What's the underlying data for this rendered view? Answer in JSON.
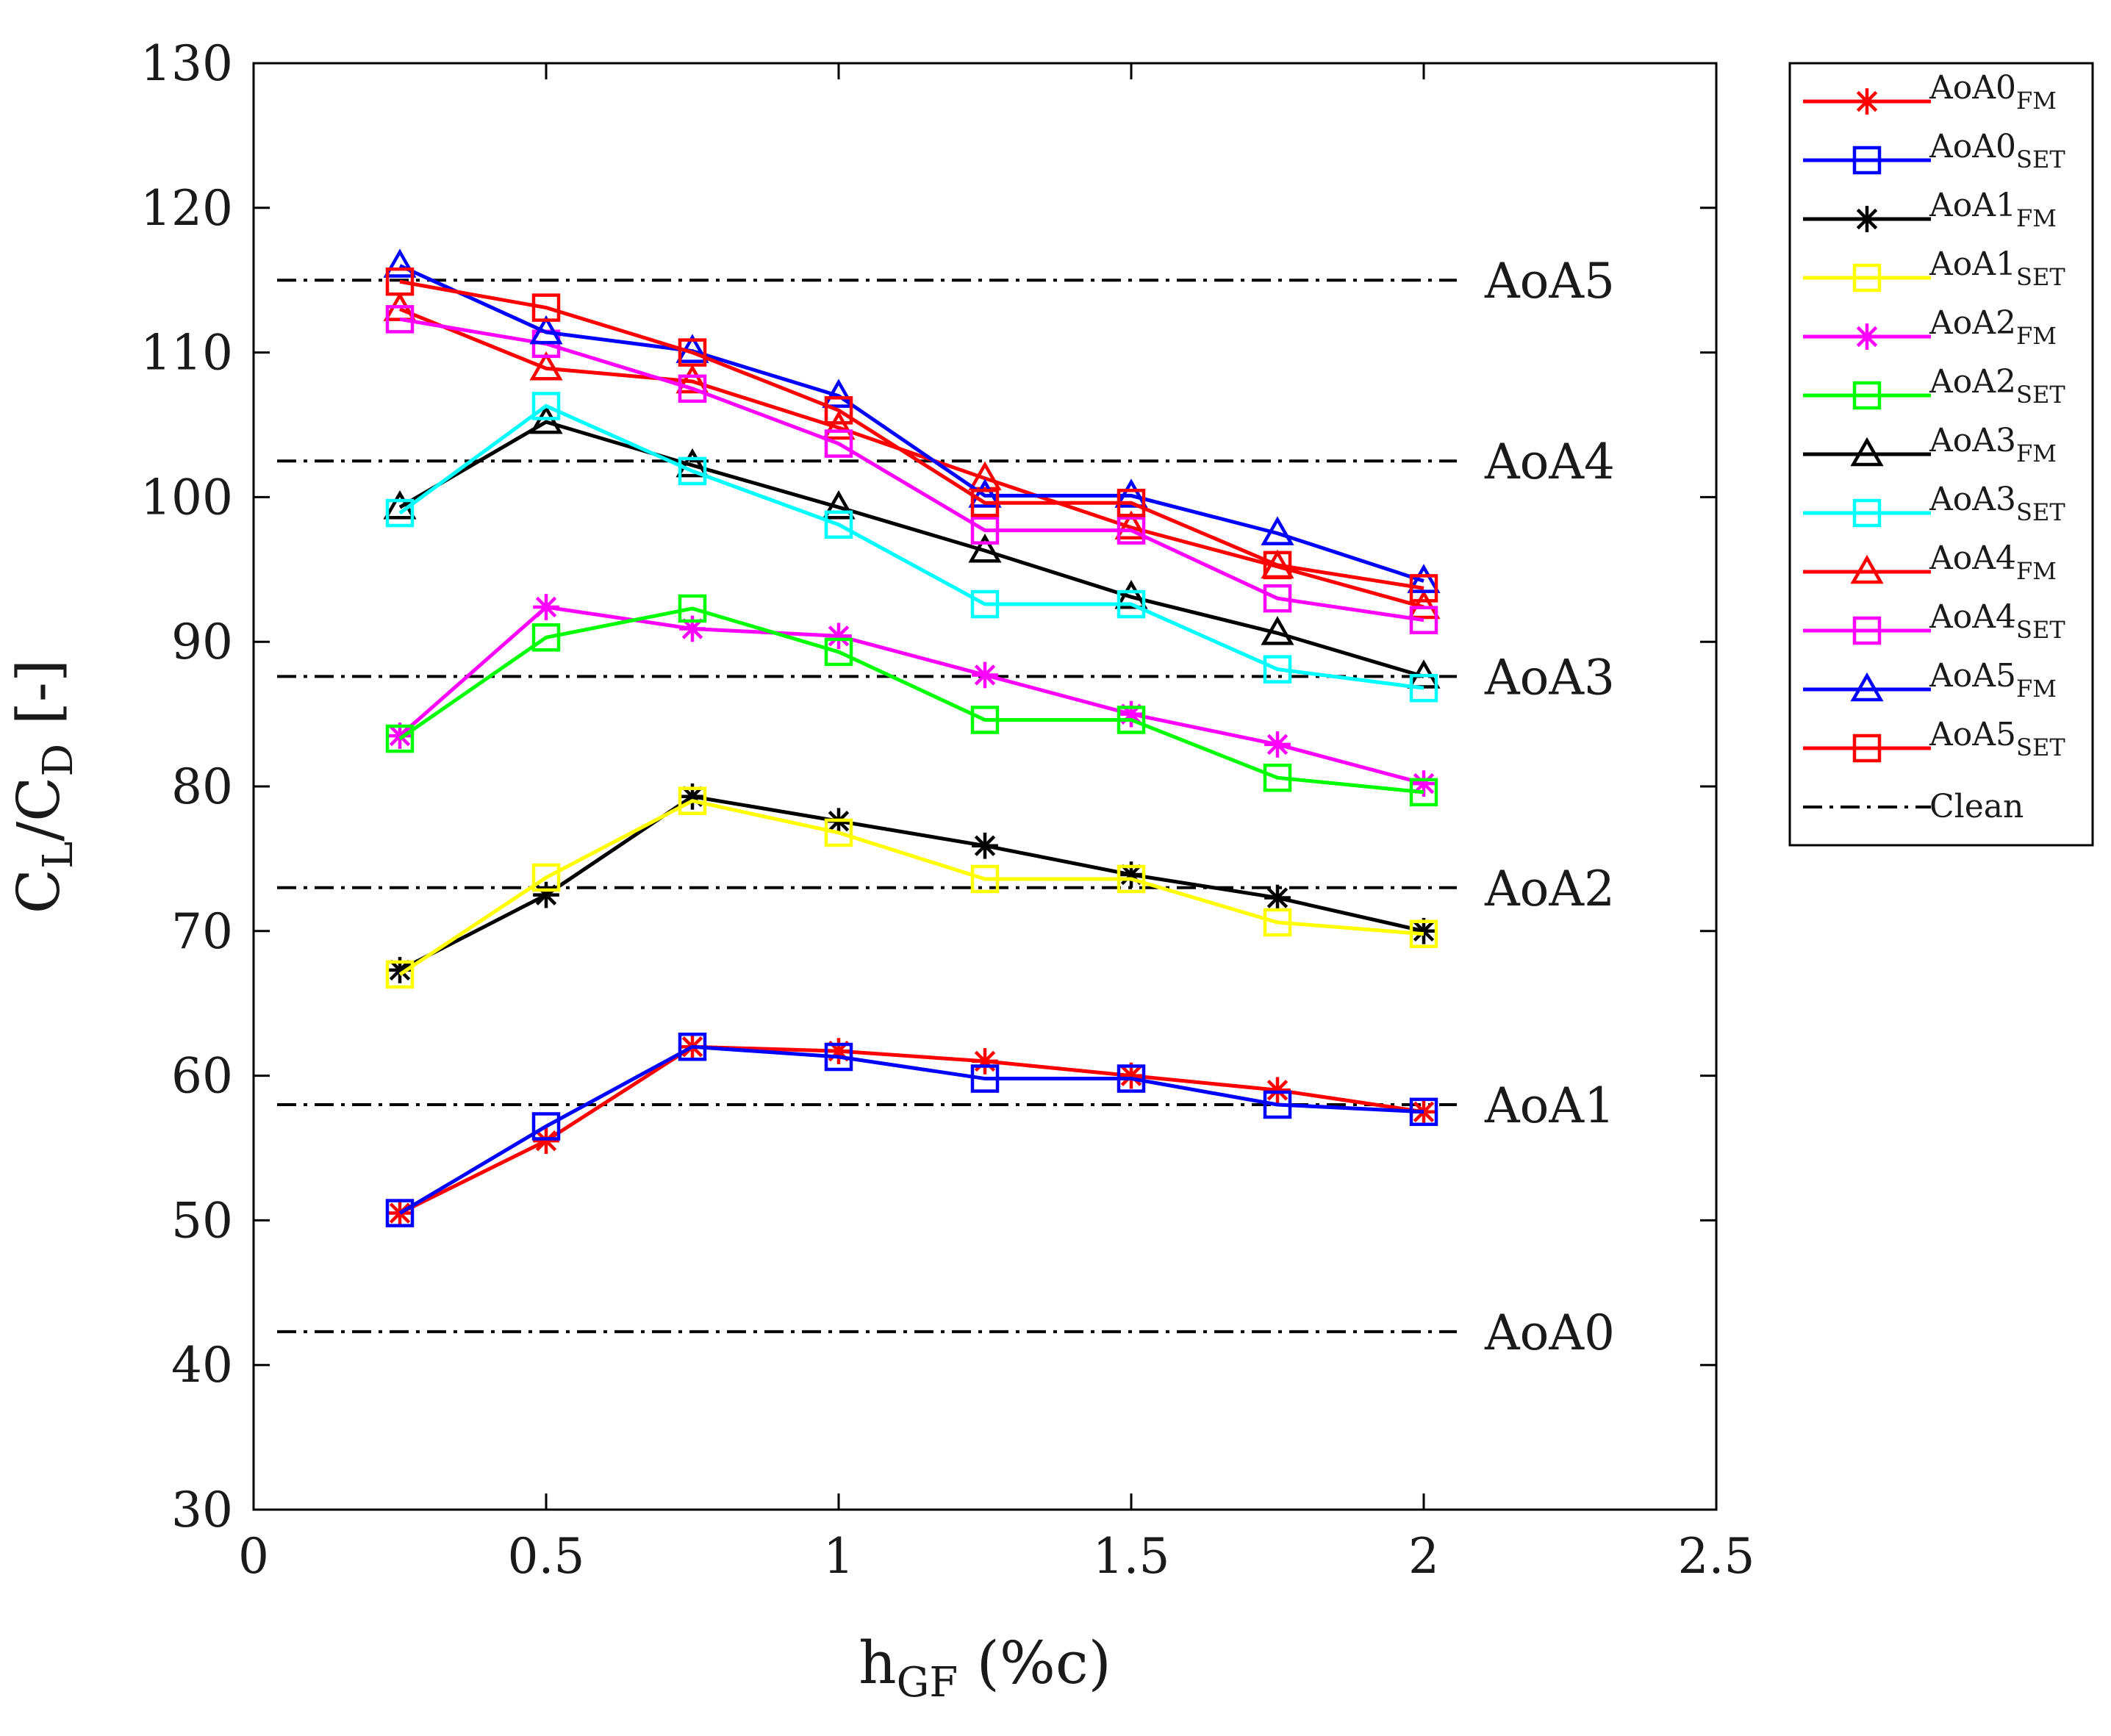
{
  "chart_data": {
    "type": "line",
    "title": "",
    "xlabel": {
      "main": "h",
      "sub": "GF",
      "rest": " (%c)"
    },
    "ylabel": {
      "c1": "C",
      "s1": "L",
      "mid": "/C",
      "s2": "D",
      "rest": " [-]"
    },
    "xlim": [
      0,
      2.5
    ],
    "ylim": [
      30,
      130
    ],
    "xticks": [
      0,
      0.5,
      1,
      1.5,
      2,
      2.5
    ],
    "xtick_labels": [
      "0",
      "0.5",
      "1",
      "1.5",
      "2",
      "2.5"
    ],
    "yticks": [
      30,
      40,
      50,
      60,
      70,
      80,
      90,
      100,
      110,
      120,
      130
    ],
    "ytick_labels": [
      "30",
      "40",
      "50",
      "60",
      "70",
      "80",
      "90",
      "100",
      "110",
      "120",
      "130"
    ],
    "x": [
      0.25,
      0.5,
      0.75,
      1,
      1.25,
      1.5,
      1.75,
      2
    ],
    "legend_position": "outside-right",
    "series": [
      {
        "name": "AoA0",
        "sub": "FM",
        "color": "#ff0000",
        "marker": "asterisk",
        "values": [
          50.5,
          55.5,
          62.0,
          61.7,
          61.0,
          60.0,
          59.0,
          57.5
        ]
      },
      {
        "name": "AoA0",
        "sub": "SET",
        "color": "#0000ff",
        "marker": "square",
        "values": [
          50.5,
          56.5,
          62.0,
          61.3,
          59.8,
          59.8,
          58.0,
          57.5
        ]
      },
      {
        "name": "AoA1",
        "sub": "FM",
        "color": "#000000",
        "marker": "asterisk",
        "values": [
          67.3,
          72.5,
          79.3,
          77.6,
          75.9,
          73.9,
          72.3,
          70.0
        ]
      },
      {
        "name": "AoA1",
        "sub": "SET",
        "color": "#ffff00",
        "marker": "square",
        "values": [
          67.0,
          73.7,
          79.0,
          76.8,
          73.6,
          73.6,
          70.6,
          69.8
        ]
      },
      {
        "name": "AoA2",
        "sub": "FM",
        "color": "#ff00ff",
        "marker": "asterisk",
        "values": [
          83.5,
          92.4,
          90.9,
          90.4,
          87.7,
          85.0,
          82.9,
          80.2
        ]
      },
      {
        "name": "AoA2",
        "sub": "SET",
        "color": "#00ff00",
        "marker": "square",
        "values": [
          83.3,
          90.3,
          92.3,
          89.3,
          84.6,
          84.6,
          80.6,
          79.6
        ]
      },
      {
        "name": "AoA3",
        "sub": "FM",
        "color": "#000000",
        "marker": "triangle",
        "values": [
          99.3,
          105.2,
          102.2,
          99.3,
          96.3,
          93.1,
          90.6,
          87.6
        ]
      },
      {
        "name": "AoA3",
        "sub": "SET",
        "color": "#00ffff",
        "marker": "square",
        "values": [
          98.9,
          106.3,
          101.8,
          98.1,
          92.6,
          92.6,
          88.1,
          86.8
        ]
      },
      {
        "name": "AoA4",
        "sub": "FM",
        "color": "#ff0000",
        "marker": "triangle",
        "values": [
          113.0,
          108.9,
          108.0,
          104.8,
          101.3,
          97.9,
          95.2,
          92.4
        ]
      },
      {
        "name": "AoA4",
        "sub": "SET",
        "color": "#ff00ff",
        "marker": "square",
        "values": [
          112.3,
          110.6,
          107.5,
          103.7,
          97.7,
          97.7,
          93.0,
          91.5
        ]
      },
      {
        "name": "AoA5",
        "sub": "FM",
        "color": "#0000ff",
        "marker": "triangle",
        "values": [
          116.0,
          111.4,
          110.1,
          107.0,
          100.1,
          100.1,
          97.5,
          94.2
        ]
      },
      {
        "name": "AoA5",
        "sub": "SET",
        "color": "#ff0000",
        "marker": "square",
        "values": [
          114.9,
          113.1,
          110.0,
          106.0,
          99.6,
          99.6,
          95.3,
          93.7
        ]
      }
    ],
    "clean": {
      "legend_label": "Clean",
      "color": "#000000",
      "lines": [
        {
          "label": "AoA0",
          "value": 42.3
        },
        {
          "label": "AoA1",
          "value": 58.0
        },
        {
          "label": "AoA2",
          "value": 73.0
        },
        {
          "label": "AoA3",
          "value": 87.6
        },
        {
          "label": "AoA4",
          "value": 102.5
        },
        {
          "label": "AoA5",
          "value": 115.0
        }
      ]
    }
  }
}
